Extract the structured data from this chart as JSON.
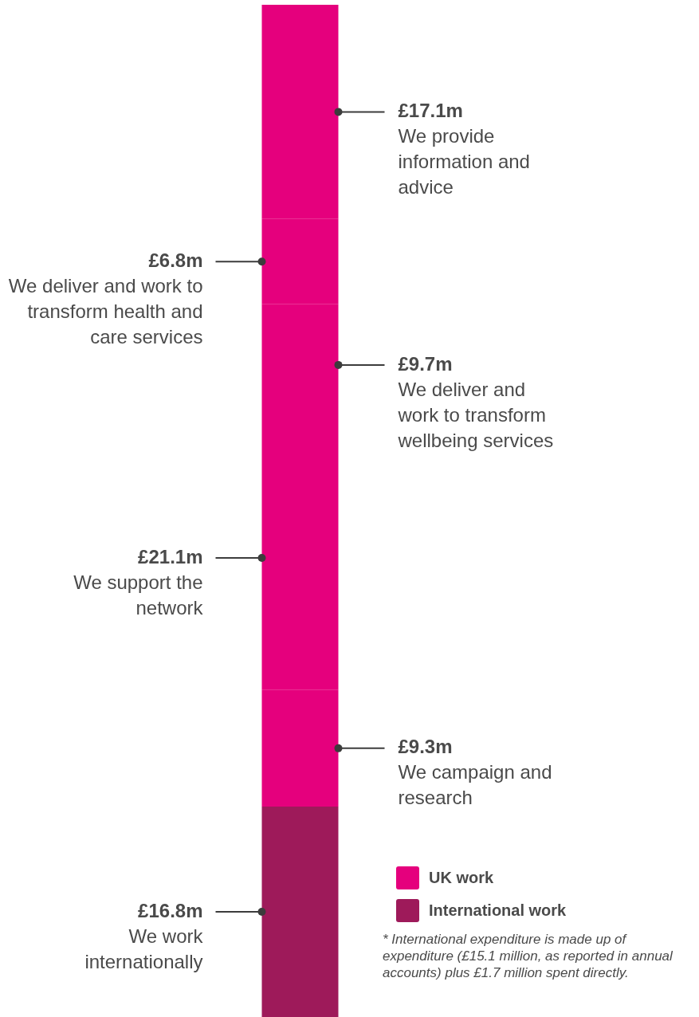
{
  "chart_data": {
    "type": "bar",
    "stacked": true,
    "categories": [
      null
    ],
    "series": [
      {
        "name": "We work internationally",
        "color": "#9e1a5a",
        "values": [
          16.8
        ],
        "value_labels": [
          "£16.8m"
        ]
      },
      {
        "name": "We campaign and research",
        "color": "#e5007d",
        "values": [
          9.3
        ],
        "value_labels": [
          "£9.3m"
        ]
      },
      {
        "name": "We support the network",
        "color": "#e5007d",
        "values": [
          21.1
        ],
        "value_labels": [
          "£21.1m"
        ]
      },
      {
        "name": "We deliver and work to transform wellbeing services",
        "color": "#e5007d",
        "values": [
          9.7
        ],
        "value_labels": [
          "£9.7m"
        ]
      },
      {
        "name": "We deliver and work to transform health and care services",
        "color": "#e5007d",
        "values": [
          6.8
        ],
        "value_labels": [
          "£6.8m"
        ]
      },
      {
        "name": "We provide information and advice",
        "color": "#e5007d",
        "values": [
          17.1
        ],
        "value_labels": [
          "£17.1m"
        ]
      }
    ],
    "annotations": [
      "UK work",
      "International work",
      "* International expenditure is made up of expenditure (£15.1 million, as reported in annual accounts) plus £1.7 million spent directly."
    ]
  }
}
